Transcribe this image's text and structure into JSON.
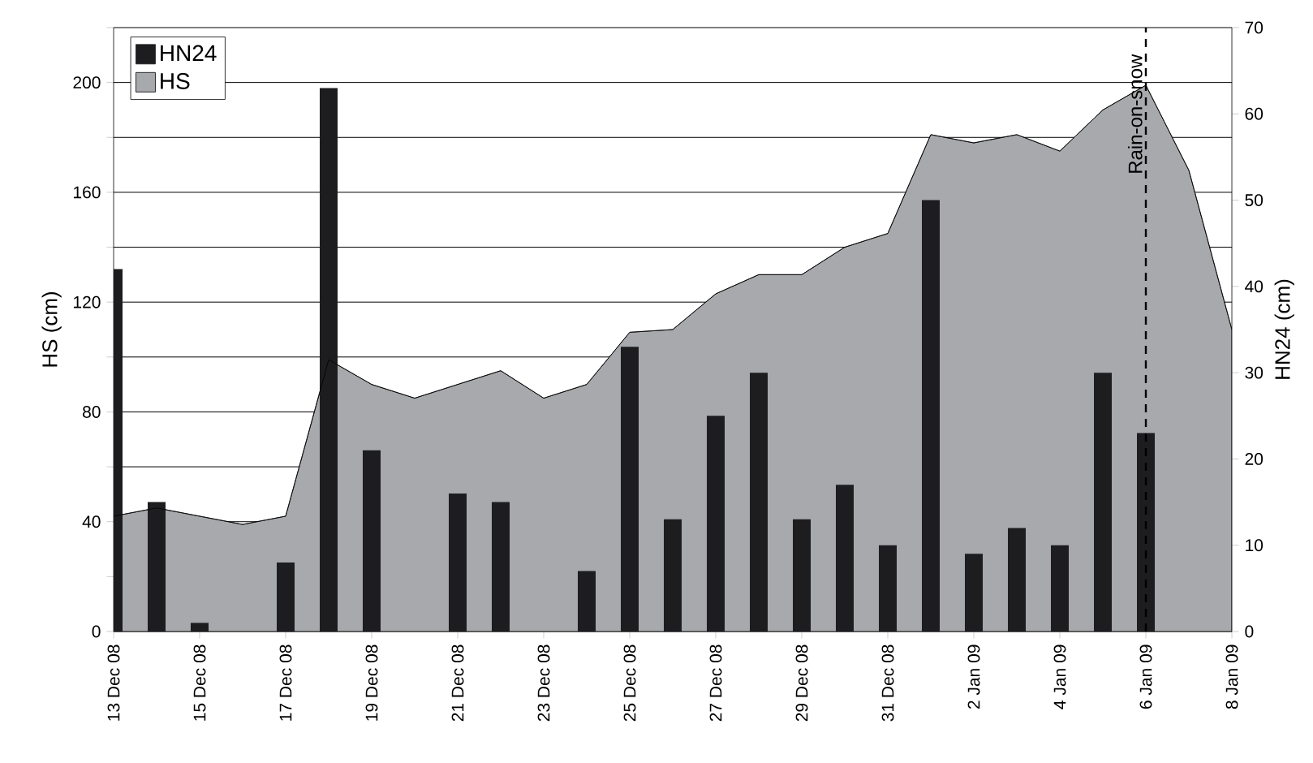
{
  "chart_data": {
    "type": "bar",
    "categories": [
      "13 Dec 08",
      null,
      "15 Dec 08",
      null,
      "17 Dec 08",
      null,
      "19 Dec 08",
      null,
      "21 Dec 08",
      null,
      "23 Dec 08",
      null,
      "25 Dec 08",
      null,
      "27 Dec 08",
      null,
      "29 Dec 08",
      null,
      "31 Dec 08",
      null,
      "2 Jan 09",
      null,
      "4 Jan 09",
      null,
      "6 Jan 09",
      null,
      "8 Jan 09"
    ],
    "series": [
      {
        "name": "HN24",
        "axis": "y2",
        "color": "#1d1d20",
        "values": [
          42,
          15,
          1,
          0,
          8,
          63,
          21,
          0,
          16,
          15,
          0,
          7,
          33,
          13,
          25,
          30,
          13,
          17,
          10,
          50,
          9,
          12,
          10,
          30,
          23,
          0,
          0
        ]
      },
      {
        "name": "HS",
        "type": "area",
        "axis": "y",
        "color": "#a7a9ac",
        "values": [
          42,
          45,
          42,
          39,
          42,
          99,
          90,
          85,
          90,
          95,
          85,
          90,
          109,
          110,
          123,
          130,
          130,
          140,
          145,
          181,
          178,
          181,
          175,
          190,
          199,
          168,
          110
        ]
      }
    ],
    "ylabel": "HS (cm)",
    "y2label": "HN24 (cm)",
    "ylim": [
      0,
      220
    ],
    "yticks": [
      0,
      {
        "value": 20,
        "label": null
      },
      40,
      {
        "value": 60,
        "label": null
      },
      80,
      {
        "value": 100,
        "label": null
      },
      120,
      {
        "value": 140,
        "label": null
      },
      160,
      {
        "value": 180,
        "label": null
      },
      200,
      {
        "value": 220,
        "label": null
      }
    ],
    "y2lim": [
      0,
      70
    ],
    "y2ticks": [
      0,
      10,
      20,
      30,
      40,
      50,
      60,
      70
    ],
    "ref_lines": [
      {
        "axis": "x",
        "value": "6 Jan 09",
        "label": "Rain-on-snow",
        "color": "#000000",
        "line_style": "dashed"
      }
    ],
    "grid": "y",
    "legend": "top left"
  }
}
